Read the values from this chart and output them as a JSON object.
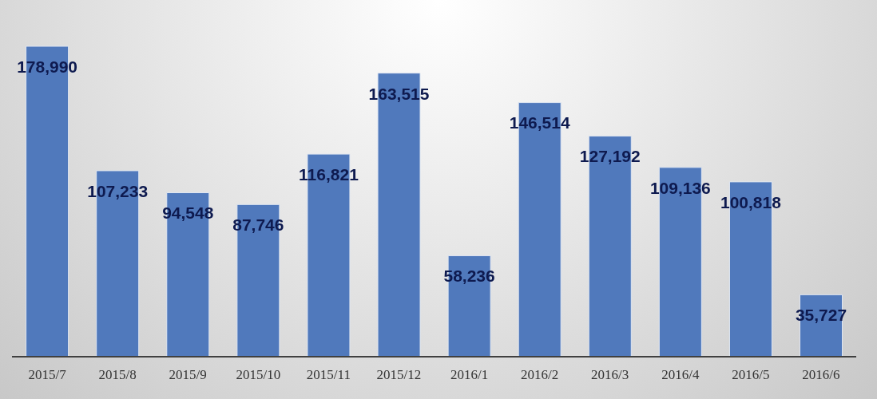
{
  "chart_data": {
    "type": "bar",
    "categories": [
      "2015/7",
      "2015/8",
      "2015/9",
      "2015/10",
      "2015/11",
      "2015/12",
      "2016/1",
      "2016/2",
      "2016/3",
      "2016/4",
      "2016/5",
      "2016/6"
    ],
    "values": [
      178990,
      107233,
      94548,
      87746,
      116821,
      163515,
      58236,
      146514,
      127192,
      109136,
      100818,
      35727
    ],
    "value_labels": [
      "178,990",
      "107,233",
      "94,548",
      "87,746",
      "116,821",
      "163,515",
      "58,236",
      "146,514",
      "127,192",
      "109,136",
      "100,818",
      "35,727"
    ],
    "color": "#5079bc",
    "grid": false,
    "legend": false
  }
}
